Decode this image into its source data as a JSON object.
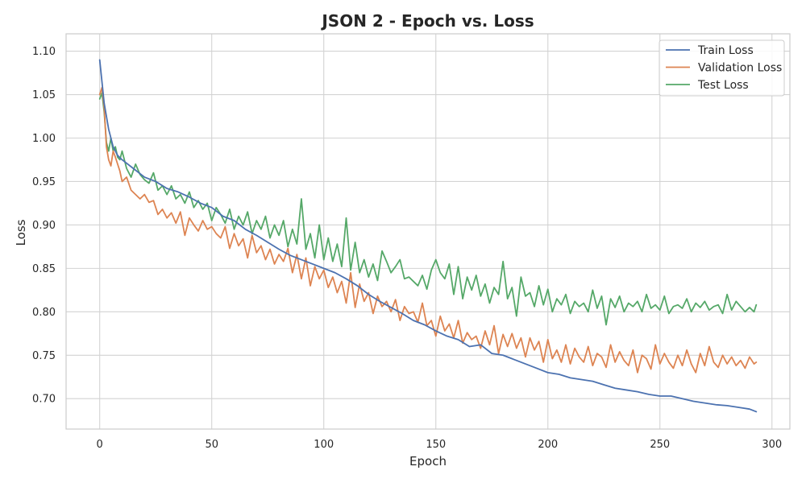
{
  "chart_data": {
    "type": "line",
    "title": "JSON 2 - Epoch vs. Loss",
    "xlabel": "Epoch",
    "ylabel": "Loss",
    "xlim": [
      -15,
      308
    ],
    "ylim": [
      0.665,
      1.12
    ],
    "xticks": [
      0,
      50,
      100,
      150,
      200,
      250,
      300
    ],
    "yticks": [
      0.7,
      0.75,
      0.8,
      0.85,
      0.9,
      0.95,
      1.0,
      1.05,
      1.1
    ],
    "grid": true,
    "legend_position": "top-right",
    "series": [
      {
        "name": "Train Loss",
        "color": "#4c72b0",
        "x": [
          0,
          2,
          4,
          6,
          8,
          10,
          15,
          20,
          25,
          30,
          35,
          40,
          45,
          50,
          55,
          60,
          65,
          70,
          75,
          80,
          85,
          90,
          95,
          100,
          105,
          110,
          115,
          120,
          125,
          130,
          135,
          140,
          145,
          150,
          155,
          160,
          165,
          170,
          175,
          180,
          185,
          190,
          195,
          200,
          205,
          210,
          215,
          220,
          225,
          230,
          235,
          240,
          245,
          250,
          255,
          260,
          265,
          270,
          275,
          280,
          285,
          290,
          293
        ],
        "y": [
          1.09,
          1.04,
          1.01,
          0.99,
          0.98,
          0.975,
          0.965,
          0.955,
          0.95,
          0.942,
          0.938,
          0.932,
          0.925,
          0.92,
          0.91,
          0.905,
          0.895,
          0.888,
          0.88,
          0.872,
          0.865,
          0.86,
          0.855,
          0.85,
          0.845,
          0.838,
          0.83,
          0.82,
          0.812,
          0.805,
          0.798,
          0.79,
          0.785,
          0.778,
          0.772,
          0.768,
          0.76,
          0.762,
          0.752,
          0.75,
          0.745,
          0.74,
          0.735,
          0.73,
          0.728,
          0.724,
          0.722,
          0.72,
          0.716,
          0.712,
          0.71,
          0.708,
          0.705,
          0.703,
          0.703,
          0.7,
          0.697,
          0.695,
          0.693,
          0.692,
          0.69,
          0.688,
          0.685
        ]
      },
      {
        "name": "Validation Loss",
        "color": "#dd8452",
        "x": [
          0,
          1,
          2,
          3,
          4,
          5,
          6,
          7,
          8,
          9,
          10,
          12,
          14,
          16,
          18,
          20,
          22,
          24,
          26,
          28,
          30,
          32,
          34,
          36,
          38,
          40,
          42,
          44,
          46,
          48,
          50,
          52,
          54,
          56,
          58,
          60,
          62,
          64,
          66,
          68,
          70,
          72,
          74,
          76,
          78,
          80,
          82,
          84,
          86,
          88,
          90,
          92,
          94,
          96,
          98,
          100,
          102,
          104,
          106,
          108,
          110,
          112,
          114,
          116,
          118,
          120,
          122,
          124,
          126,
          128,
          130,
          132,
          134,
          136,
          138,
          140,
          142,
          144,
          146,
          148,
          150,
          152,
          154,
          156,
          158,
          160,
          162,
          164,
          166,
          168,
          170,
          172,
          174,
          176,
          178,
          180,
          182,
          184,
          186,
          188,
          190,
          192,
          194,
          196,
          198,
          200,
          202,
          204,
          206,
          208,
          210,
          212,
          214,
          216,
          218,
          220,
          222,
          224,
          226,
          228,
          230,
          232,
          234,
          236,
          238,
          240,
          242,
          244,
          246,
          248,
          250,
          252,
          254,
          256,
          258,
          260,
          262,
          264,
          266,
          268,
          270,
          272,
          274,
          276,
          278,
          280,
          282,
          284,
          286,
          288,
          290,
          292,
          293
        ],
        "y": [
          1.05,
          1.058,
          1.035,
          0.99,
          0.975,
          0.968,
          0.985,
          0.978,
          0.97,
          0.962,
          0.95,
          0.955,
          0.94,
          0.935,
          0.93,
          0.935,
          0.926,
          0.928,
          0.912,
          0.918,
          0.908,
          0.914,
          0.902,
          0.915,
          0.888,
          0.908,
          0.9,
          0.893,
          0.905,
          0.895,
          0.898,
          0.89,
          0.885,
          0.898,
          0.873,
          0.89,
          0.876,
          0.884,
          0.862,
          0.888,
          0.868,
          0.876,
          0.86,
          0.872,
          0.855,
          0.866,
          0.858,
          0.873,
          0.845,
          0.866,
          0.838,
          0.862,
          0.83,
          0.852,
          0.838,
          0.848,
          0.828,
          0.84,
          0.822,
          0.835,
          0.81,
          0.845,
          0.805,
          0.832,
          0.812,
          0.822,
          0.798,
          0.818,
          0.806,
          0.812,
          0.8,
          0.814,
          0.79,
          0.806,
          0.798,
          0.8,
          0.788,
          0.81,
          0.784,
          0.79,
          0.772,
          0.795,
          0.778,
          0.786,
          0.77,
          0.79,
          0.764,
          0.776,
          0.768,
          0.772,
          0.758,
          0.778,
          0.762,
          0.784,
          0.752,
          0.774,
          0.76,
          0.775,
          0.758,
          0.77,
          0.748,
          0.77,
          0.756,
          0.766,
          0.742,
          0.768,
          0.746,
          0.756,
          0.742,
          0.762,
          0.74,
          0.758,
          0.748,
          0.742,
          0.76,
          0.738,
          0.752,
          0.748,
          0.736,
          0.762,
          0.742,
          0.754,
          0.744,
          0.738,
          0.756,
          0.73,
          0.75,
          0.746,
          0.734,
          0.762,
          0.74,
          0.752,
          0.742,
          0.735,
          0.75,
          0.738,
          0.756,
          0.74,
          0.73,
          0.752,
          0.738,
          0.76,
          0.742,
          0.736,
          0.75,
          0.74,
          0.748,
          0.738,
          0.744,
          0.735,
          0.748,
          0.74,
          0.742
        ]
      },
      {
        "name": "Test Loss",
        "color": "#55a868",
        "x": [
          0,
          1,
          2,
          3,
          4,
          5,
          6,
          7,
          8,
          9,
          10,
          12,
          14,
          16,
          18,
          20,
          22,
          24,
          26,
          28,
          30,
          32,
          34,
          36,
          38,
          40,
          42,
          44,
          46,
          48,
          50,
          52,
          54,
          56,
          58,
          60,
          62,
          64,
          66,
          68,
          70,
          72,
          74,
          76,
          78,
          80,
          82,
          84,
          86,
          88,
          90,
          92,
          94,
          96,
          98,
          100,
          102,
          104,
          106,
          108,
          110,
          112,
          114,
          116,
          118,
          120,
          122,
          124,
          126,
          128,
          130,
          132,
          134,
          136,
          138,
          140,
          142,
          144,
          146,
          148,
          150,
          152,
          154,
          156,
          158,
          160,
          162,
          164,
          166,
          168,
          170,
          172,
          174,
          176,
          178,
          180,
          182,
          184,
          186,
          188,
          190,
          192,
          194,
          196,
          198,
          200,
          202,
          204,
          206,
          208,
          210,
          212,
          214,
          216,
          218,
          220,
          222,
          224,
          226,
          228,
          230,
          232,
          234,
          236,
          238,
          240,
          242,
          244,
          246,
          248,
          250,
          252,
          254,
          256,
          258,
          260,
          262,
          264,
          266,
          268,
          270,
          272,
          274,
          276,
          278,
          280,
          282,
          284,
          286,
          288,
          290,
          292,
          293
        ],
        "y": [
          1.045,
          1.052,
          1.03,
          0.995,
          0.985,
          1.0,
          0.985,
          0.99,
          0.978,
          0.975,
          0.985,
          0.965,
          0.955,
          0.97,
          0.958,
          0.952,
          0.948,
          0.96,
          0.94,
          0.945,
          0.935,
          0.945,
          0.93,
          0.935,
          0.925,
          0.938,
          0.92,
          0.928,
          0.918,
          0.925,
          0.905,
          0.92,
          0.912,
          0.902,
          0.918,
          0.895,
          0.91,
          0.9,
          0.915,
          0.89,
          0.905,
          0.895,
          0.91,
          0.885,
          0.9,
          0.888,
          0.905,
          0.875,
          0.895,
          0.878,
          0.93,
          0.872,
          0.89,
          0.862,
          0.9,
          0.86,
          0.885,
          0.858,
          0.878,
          0.852,
          0.908,
          0.848,
          0.88,
          0.845,
          0.86,
          0.84,
          0.855,
          0.836,
          0.87,
          0.858,
          0.845,
          0.852,
          0.86,
          0.838,
          0.84,
          0.835,
          0.83,
          0.842,
          0.826,
          0.848,
          0.86,
          0.845,
          0.838,
          0.855,
          0.82,
          0.852,
          0.815,
          0.84,
          0.825,
          0.842,
          0.818,
          0.832,
          0.81,
          0.828,
          0.82,
          0.858,
          0.815,
          0.828,
          0.795,
          0.84,
          0.818,
          0.822,
          0.806,
          0.83,
          0.808,
          0.826,
          0.8,
          0.815,
          0.808,
          0.82,
          0.798,
          0.812,
          0.806,
          0.81,
          0.8,
          0.825,
          0.804,
          0.818,
          0.785,
          0.815,
          0.805,
          0.818,
          0.8,
          0.81,
          0.806,
          0.812,
          0.8,
          0.82,
          0.804,
          0.808,
          0.802,
          0.818,
          0.798,
          0.806,
          0.808,
          0.804,
          0.815,
          0.8,
          0.81,
          0.805,
          0.812,
          0.802,
          0.806,
          0.808,
          0.798,
          0.82,
          0.802,
          0.812,
          0.806,
          0.8,
          0.805,
          0.8,
          0.808
        ]
      }
    ]
  }
}
